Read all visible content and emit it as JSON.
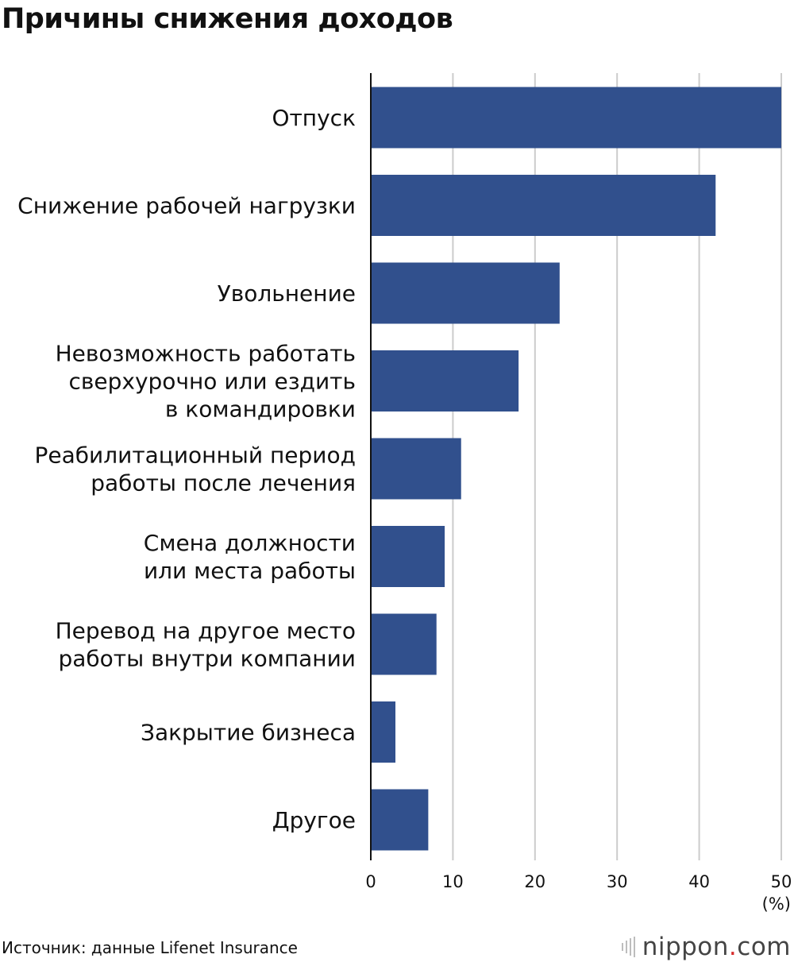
{
  "title": "Причины снижения доходов",
  "source": "Источник: данные Lifenet Insurance",
  "logo": {
    "name": "nippon",
    "dot": ".",
    "suffix": "com",
    "icon": "nippon-bars-icon"
  },
  "colors": {
    "bar": "#31508d",
    "grid": "#cccccc",
    "axis": "#111111",
    "text": "#111111"
  },
  "chart_data": {
    "type": "bar",
    "orientation": "horizontal",
    "categories": [
      "Отпуск",
      "Снижение рабочей нагрузки",
      "Увольнение",
      "Невозможность работать сверхурочно или ездить в командировки",
      "Реабилитационный период работы после лечения",
      "Смена должности или места работы",
      "Перевод на другое место работы внутри компании",
      "Закрытие бизнеса",
      "Другое"
    ],
    "category_lines": [
      [
        "Отпуск"
      ],
      [
        "Снижение рабочей нагрузки"
      ],
      [
        "Увольнение"
      ],
      [
        "Невозможность работать",
        "сверхурочно или ездить",
        "в командировки"
      ],
      [
        "Реабилитационный период",
        "работы после лечения"
      ],
      [
        "Смена должности",
        "или места работы"
      ],
      [
        "Перевод на другое место",
        "работы внутри компании"
      ],
      [
        "Закрытие бизнеса"
      ],
      [
        "Другое"
      ]
    ],
    "values": [
      50,
      42,
      23,
      18,
      11,
      9,
      8,
      3,
      7
    ],
    "xlim": [
      0,
      50
    ],
    "xticks": [
      0,
      10,
      20,
      30,
      40,
      50
    ],
    "unit": "(%)",
    "grid": true
  }
}
